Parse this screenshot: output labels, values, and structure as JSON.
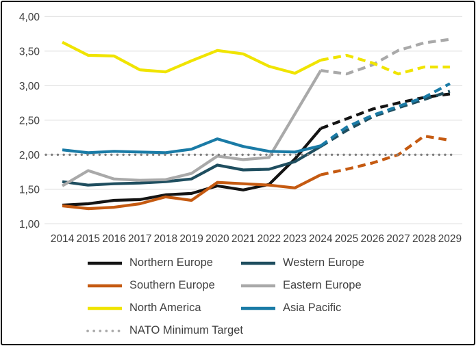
{
  "chart_data": {
    "type": "line",
    "title": "",
    "xlabel": "",
    "ylabel": "",
    "x": [
      2014,
      2015,
      2016,
      2017,
      2018,
      2019,
      2020,
      2021,
      2022,
      2023,
      2024,
      2025,
      2026,
      2027,
      2028,
      2029
    ],
    "x_labels": [
      "2014",
      "2015",
      "2016",
      "2017",
      "2018",
      "2019",
      "2020",
      "2021",
      "2022",
      "2023",
      "2024",
      "2025",
      "2026",
      "2027",
      "2028",
      "2029"
    ],
    "y_ticks": [
      "4,00",
      "3,50",
      "3,00",
      "2,50",
      "2,00",
      "1,50",
      "1,00"
    ],
    "y_tick_values": [
      4.0,
      3.5,
      3.0,
      2.5,
      2.0,
      1.5,
      1.0
    ],
    "ylim": [
      1.0,
      4.0
    ],
    "grid": "horizontal",
    "grid_color": "#d9d9d9",
    "axis_text_color": "#404040",
    "legend_position": "bottom",
    "decimal_separator": ",",
    "forecast_from_year": 2024,
    "forecast_style": "dashed",
    "series": [
      {
        "id": "northern-europe",
        "name": "Northern Europe",
        "color": "#141414",
        "values": [
          1.27,
          1.29,
          1.34,
          1.35,
          1.42,
          1.44,
          1.55,
          1.49,
          1.57,
          1.94,
          2.38,
          2.52,
          2.66,
          2.75,
          2.83,
          2.88
        ]
      },
      {
        "id": "western-europe",
        "name": "Western Europe",
        "color": "#1f4e5f",
        "values": [
          1.61,
          1.56,
          1.58,
          1.59,
          1.61,
          1.65,
          1.85,
          1.78,
          1.79,
          1.9,
          2.12,
          2.35,
          2.55,
          2.68,
          2.8,
          2.92
        ]
      },
      {
        "id": "southern-europe",
        "name": "Southern Europe",
        "color": "#c55a11",
        "values": [
          1.26,
          1.22,
          1.24,
          1.29,
          1.39,
          1.34,
          1.6,
          1.58,
          1.56,
          1.52,
          1.71,
          1.79,
          1.88,
          2.0,
          2.27,
          2.21
        ]
      },
      {
        "id": "eastern-europe",
        "name": "Eastern Europe",
        "color": "#a9a9a9",
        "values": [
          1.55,
          1.77,
          1.65,
          1.63,
          1.64,
          1.73,
          1.98,
          1.93,
          1.96,
          2.59,
          3.22,
          3.17,
          3.3,
          3.51,
          3.62,
          3.67
        ]
      },
      {
        "id": "north-america",
        "name": "North America",
        "color": "#f0e400",
        "values": [
          3.63,
          3.44,
          3.43,
          3.23,
          3.2,
          3.36,
          3.51,
          3.46,
          3.28,
          3.18,
          3.37,
          3.44,
          3.33,
          3.17,
          3.27,
          3.27
        ]
      },
      {
        "id": "asia-pacific",
        "name": "Asia Pacific",
        "color": "#1a7ba6",
        "values": [
          2.07,
          2.03,
          2.05,
          2.04,
          2.03,
          2.08,
          2.23,
          2.12,
          2.05,
          2.04,
          2.13,
          2.4,
          2.57,
          2.7,
          2.83,
          3.03
        ]
      }
    ],
    "reference_line": {
      "id": "nato-minimum-target",
      "name": "NATO Minimum Target",
      "value": 2.0,
      "color": "#7f7f7f",
      "legend_color": "#a6a6a6",
      "style": "dotted"
    }
  }
}
